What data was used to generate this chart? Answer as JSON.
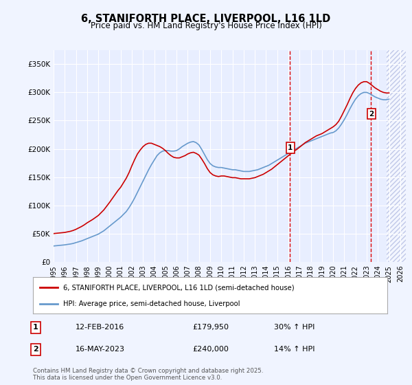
{
  "title": "6, STANIFORTH PLACE, LIVERPOOL, L16 1LD",
  "subtitle": "Price paid vs. HM Land Registry's House Price Index (HPI)",
  "ylabel_ticks": [
    "£0",
    "£50K",
    "£100K",
    "£150K",
    "£200K",
    "£250K",
    "£300K",
    "£350K"
  ],
  "ylim": [
    0,
    375000
  ],
  "xlim_start": 1995.0,
  "xlim_end": 2026.5,
  "background_color": "#f0f4ff",
  "plot_bg_color": "#e8eeff",
  "hatch_color": "#c0c8e8",
  "grid_color": "#ffffff",
  "red_line_color": "#cc0000",
  "blue_line_color": "#6699cc",
  "dashed_line_color": "#dd0000",
  "marker1_x": 2016.12,
  "marker1_y": 179950,
  "marker1_label": "1",
  "marker1_date": "12-FEB-2016",
  "marker1_price": "£179,950",
  "marker1_hpi": "30% ↑ HPI",
  "marker2_x": 2023.37,
  "marker2_y": 240000,
  "marker2_label": "2",
  "marker2_date": "16-MAY-2023",
  "marker2_price": "£240,000",
  "marker2_hpi": "14% ↑ HPI",
  "legend_line1": "6, STANIFORTH PLACE, LIVERPOOL, L16 1LD (semi-detached house)",
  "legend_line2": "HPI: Average price, semi-detached house, Liverpool",
  "footer": "Contains HM Land Registry data © Crown copyright and database right 2025.\nThis data is licensed under the Open Government Licence v3.0.",
  "hpi_years": [
    1995.0,
    1995.25,
    1995.5,
    1995.75,
    1996.0,
    1996.25,
    1996.5,
    1996.75,
    1997.0,
    1997.25,
    1997.5,
    1997.75,
    1998.0,
    1998.25,
    1998.5,
    1998.75,
    1999.0,
    1999.25,
    1999.5,
    1999.75,
    2000.0,
    2000.25,
    2000.5,
    2000.75,
    2001.0,
    2001.25,
    2001.5,
    2001.75,
    2002.0,
    2002.25,
    2002.5,
    2002.75,
    2003.0,
    2003.25,
    2003.5,
    2003.75,
    2004.0,
    2004.25,
    2004.5,
    2004.75,
    2005.0,
    2005.25,
    2005.5,
    2005.75,
    2006.0,
    2006.25,
    2006.5,
    2006.75,
    2007.0,
    2007.25,
    2007.5,
    2007.75,
    2008.0,
    2008.25,
    2008.5,
    2008.75,
    2009.0,
    2009.25,
    2009.5,
    2009.75,
    2010.0,
    2010.25,
    2010.5,
    2010.75,
    2011.0,
    2011.25,
    2011.5,
    2011.75,
    2012.0,
    2012.25,
    2012.5,
    2012.75,
    2013.0,
    2013.25,
    2013.5,
    2013.75,
    2014.0,
    2014.25,
    2014.5,
    2014.75,
    2015.0,
    2015.25,
    2015.5,
    2015.75,
    2016.0,
    2016.25,
    2016.5,
    2016.75,
    2017.0,
    2017.25,
    2017.5,
    2017.75,
    2018.0,
    2018.25,
    2018.5,
    2018.75,
    2019.0,
    2019.25,
    2019.5,
    2019.75,
    2020.0,
    2020.25,
    2020.5,
    2020.75,
    2021.0,
    2021.25,
    2021.5,
    2021.75,
    2022.0,
    2022.25,
    2022.5,
    2022.75,
    2023.0,
    2023.25,
    2023.5,
    2023.75,
    2024.0,
    2024.25,
    2024.5,
    2024.75,
    2025.0
  ],
  "hpi_values": [
    28000,
    28500,
    29000,
    29500,
    30000,
    30800,
    31500,
    32500,
    34000,
    35500,
    37000,
    39000,
    41000,
    43000,
    45000,
    47000,
    49000,
    52000,
    55000,
    59000,
    63000,
    67000,
    71000,
    75000,
    79000,
    84000,
    89000,
    96000,
    104000,
    113000,
    123000,
    133000,
    143000,
    153000,
    163000,
    172000,
    180000,
    188000,
    193000,
    196000,
    197000,
    197000,
    196000,
    196000,
    197000,
    200000,
    204000,
    207000,
    210000,
    212000,
    213000,
    211000,
    207000,
    199000,
    190000,
    181000,
    174000,
    170000,
    168000,
    167000,
    167000,
    166000,
    165000,
    164000,
    163000,
    163000,
    162000,
    161000,
    160000,
    160000,
    160000,
    161000,
    162000,
    163000,
    165000,
    167000,
    169000,
    171000,
    174000,
    177000,
    180000,
    183000,
    186000,
    189000,
    192000,
    195000,
    198000,
    201000,
    204000,
    207000,
    210000,
    212000,
    214000,
    216000,
    218000,
    220000,
    222000,
    224000,
    226000,
    228000,
    229000,
    232000,
    237000,
    244000,
    252000,
    261000,
    271000,
    280000,
    288000,
    294000,
    298000,
    300000,
    300000,
    298000,
    295000,
    292000,
    290000,
    288000,
    287000,
    287000,
    288000
  ],
  "red_years": [
    1995.0,
    1995.25,
    1995.5,
    1995.75,
    1996.0,
    1996.25,
    1996.5,
    1996.75,
    1997.0,
    1997.25,
    1997.5,
    1997.75,
    1998.0,
    1998.25,
    1998.5,
    1998.75,
    1999.0,
    1999.25,
    1999.5,
    1999.75,
    2000.0,
    2000.25,
    2000.5,
    2000.75,
    2001.0,
    2001.25,
    2001.5,
    2001.75,
    2002.0,
    2002.25,
    2002.5,
    2002.75,
    2003.0,
    2003.25,
    2003.5,
    2003.75,
    2004.0,
    2004.25,
    2004.5,
    2004.75,
    2005.0,
    2005.25,
    2005.5,
    2005.75,
    2006.0,
    2006.25,
    2006.5,
    2006.75,
    2007.0,
    2007.25,
    2007.5,
    2007.75,
    2008.0,
    2008.25,
    2008.5,
    2008.75,
    2009.0,
    2009.25,
    2009.5,
    2009.75,
    2010.0,
    2010.25,
    2010.5,
    2010.75,
    2011.0,
    2011.25,
    2011.5,
    2011.75,
    2012.0,
    2012.25,
    2012.5,
    2012.75,
    2013.0,
    2013.25,
    2013.5,
    2013.75,
    2014.0,
    2014.25,
    2014.5,
    2014.75,
    2015.0,
    2015.25,
    2015.5,
    2015.75,
    2016.0,
    2016.25,
    2016.5,
    2016.75,
    2017.0,
    2017.25,
    2017.5,
    2017.75,
    2018.0,
    2018.25,
    2018.5,
    2018.75,
    2019.0,
    2019.25,
    2019.5,
    2019.75,
    2020.0,
    2020.25,
    2020.5,
    2020.75,
    2021.0,
    2021.25,
    2021.5,
    2021.75,
    2022.0,
    2022.25,
    2022.5,
    2022.75,
    2023.0,
    2023.25,
    2023.5,
    2023.75,
    2024.0,
    2024.25,
    2024.5,
    2024.75,
    2025.0
  ],
  "red_values": [
    50000,
    50500,
    51000,
    51500,
    52000,
    53000,
    54000,
    55500,
    57500,
    60000,
    62500,
    65500,
    69000,
    72000,
    75000,
    78500,
    82000,
    87000,
    92000,
    98500,
    105000,
    112000,
    119000,
    126000,
    132000,
    140000,
    148000,
    158000,
    170000,
    181000,
    191000,
    198000,
    204000,
    208000,
    210000,
    210000,
    208000,
    206000,
    204000,
    201000,
    197000,
    192000,
    188000,
    185000,
    184000,
    184000,
    186000,
    188000,
    191000,
    193000,
    194000,
    192000,
    189000,
    182000,
    174000,
    165000,
    158000,
    154000,
    152000,
    151000,
    152000,
    152000,
    151000,
    150000,
    149000,
    149000,
    148000,
    147000,
    147000,
    147000,
    147000,
    148000,
    149000,
    151000,
    153000,
    155000,
    158000,
    161000,
    164000,
    168000,
    172000,
    176000,
    180000,
    184000,
    188000,
    192000,
    196000,
    199000,
    203000,
    207000,
    211000,
    214000,
    217000,
    220000,
    223000,
    225000,
    227000,
    230000,
    233000,
    236000,
    239000,
    243000,
    249000,
    258000,
    268000,
    278000,
    289000,
    299000,
    307000,
    313000,
    317000,
    319000,
    319000,
    316000,
    312000,
    308000,
    305000,
    302000,
    300000,
    299000,
    299000
  ]
}
